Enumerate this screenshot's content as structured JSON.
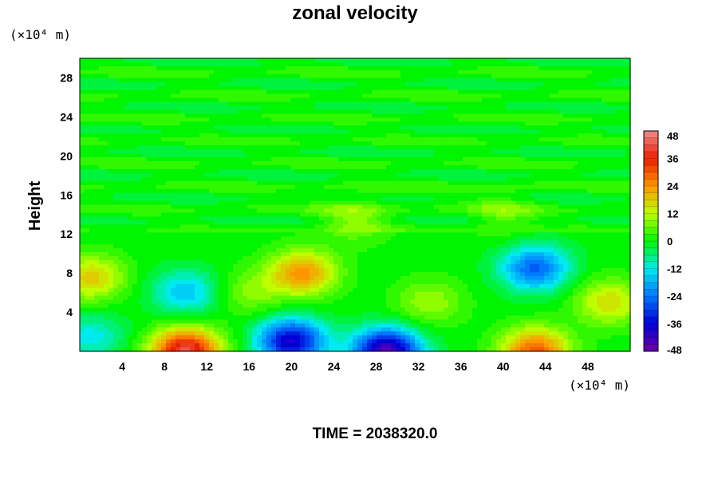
{
  "chart_data": {
    "type": "heatmap",
    "title": "zonal velocity",
    "xlabel": "",
    "ylabel": "Height",
    "x_unit": "(×10⁴ m)",
    "y_unit": "(×10⁴ m)",
    "xlim": [
      0,
      52
    ],
    "ylim": [
      0,
      30
    ],
    "x_ticks": [
      4,
      8,
      12,
      16,
      20,
      24,
      28,
      32,
      36,
      40,
      44,
      48
    ],
    "y_ticks": [
      4,
      8,
      12,
      16,
      20,
      24,
      28
    ],
    "colorbar": {
      "min": -48,
      "max": 48,
      "ticks": [
        48,
        36,
        24,
        12,
        0,
        -12,
        -24,
        -36,
        -48
      ]
    },
    "time_label": "TIME = 2038320.0",
    "features": [
      {
        "x": 21,
        "y": 8,
        "value": 24
      },
      {
        "x": 10,
        "y": 0,
        "value": 42
      },
      {
        "x": 43,
        "y": 0,
        "value": 30
      },
      {
        "x": 20,
        "y": 1,
        "value": -38
      },
      {
        "x": 29,
        "y": 0,
        "value": -45
      },
      {
        "x": 43,
        "y": 8.5,
        "value": -26
      },
      {
        "x": 10,
        "y": 6,
        "value": -16
      },
      {
        "x": 1,
        "y": 1.5,
        "value": -12
      },
      {
        "x": 1,
        "y": 7.5,
        "value": 18
      },
      {
        "x": 16,
        "y": 6,
        "value": 8
      },
      {
        "x": 50,
        "y": 5,
        "value": 16
      },
      {
        "x": 33,
        "y": 5,
        "value": 10
      },
      {
        "x": 26,
        "y": 13.5,
        "value": 9
      },
      {
        "x": 40,
        "y": 14,
        "value": 7
      }
    ]
  }
}
